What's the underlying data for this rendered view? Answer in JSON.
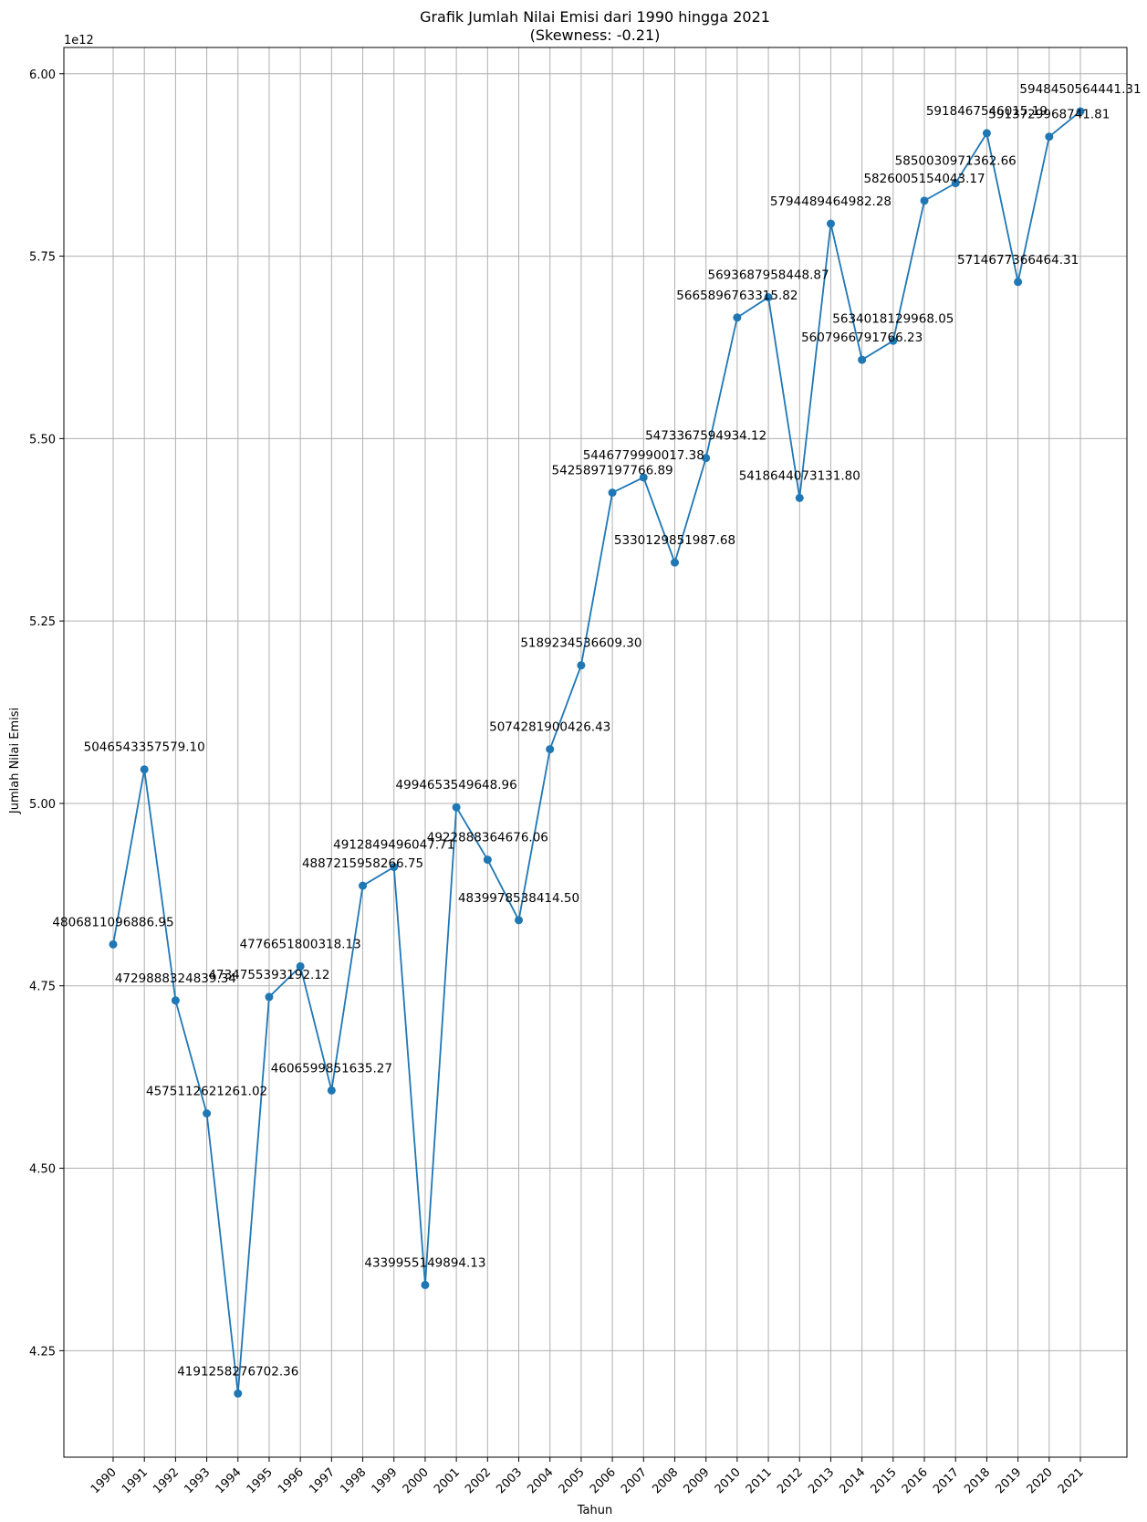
{
  "chart_data": {
    "type": "line",
    "title": "Grafik Jumlah Nilai Emisi dari 1990 hingga 2021",
    "subtitle": "(Skewness: -0.21)",
    "xlabel": "Tahun",
    "ylabel": "Jumlah Nilai Emisi",
    "y_offset_label": "1e12",
    "ylim": [
      4104000000000.0,
      6036000000000.0
    ],
    "y_ticks": [
      4250000000000.0,
      4500000000000.0,
      4750000000000.0,
      5000000000000.0,
      5250000000000.0,
      5500000000000.0,
      5750000000000.0,
      6000000000000.0
    ],
    "y_tick_labels": [
      "4.25",
      "4.50",
      "4.75",
      "5.00",
      "5.25",
      "5.50",
      "5.75",
      "6.00"
    ],
    "grid": true,
    "line_color": "#1f77b4",
    "x": [
      "1990",
      "1991",
      "1992",
      "1993",
      "1994",
      "1995",
      "1996",
      "1997",
      "1998",
      "1999",
      "2000",
      "2001",
      "2002",
      "2003",
      "2004",
      "2005",
      "2006",
      "2007",
      "2008",
      "2009",
      "2010",
      "2011",
      "2012",
      "2013",
      "2014",
      "2015",
      "2016",
      "2017",
      "2018",
      "2019",
      "2020",
      "2021"
    ],
    "values": [
      4806811096886.95,
      5046543357579.1,
      4729888324839.34,
      4575112621261.02,
      4191258276702.36,
      4734755393192.12,
      4776651800318.13,
      4606599851635.27,
      4887215958266.75,
      4912849496047.71,
      4339955149894.13,
      4994653549648.96,
      4922888364676.06,
      4839978538414.5,
      5074281900426.43,
      5189234536609.3,
      5425897197766.89,
      5446779990017.38,
      5330129851987.68,
      5473367594934.12,
      5665896763315.82,
      5693687958448.87,
      5418644073131.8,
      5794489464982.28,
      5607966791766.23,
      5634018129968.05,
      5826005154043.17,
      5850030971362.66,
      5918467546015.19,
      5714677366464.31,
      5913729968741.81,
      5948450564441.31
    ],
    "data_labels": [
      "4806811096886.95",
      "5046543357579.10",
      "4729888324839.34",
      "4575112621261.02",
      "4191258276702.36",
      "4734755393192.12",
      "4776651800318.13",
      "4606599851635.27",
      "4887215958266.75",
      "4912849496047.71",
      "4339955149894.13",
      "4994653549648.96",
      "4922888364676.06",
      "4839978538414.50",
      "5074281900426.43",
      "5189234536609.30",
      "5425897197766.89",
      "5446779990017.38",
      "5330129851987.68",
      "5473367594934.12",
      "5665896763315.82",
      "5693687958448.87",
      "5418644073131.80",
      "5794489464982.28",
      "5607966791766.23",
      "5634018129968.05",
      "5826005154043.17",
      "5850030971362.66",
      "5918467546015.19",
      "5714677366464.31",
      "5913729968741.81",
      "5948450564441.31"
    ]
  }
}
